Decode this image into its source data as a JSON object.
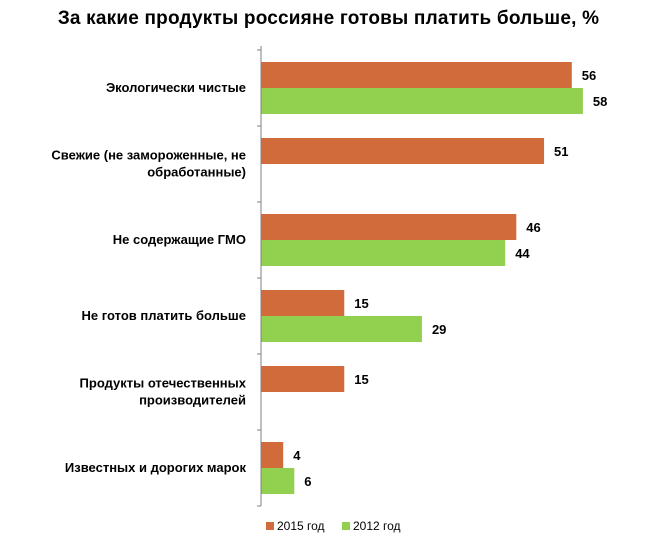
{
  "chart_data": {
    "type": "bar",
    "orientation": "horizontal",
    "title": "За какие продукты россияне готовы платить больше, %",
    "categories": [
      [
        "Экологически чистые"
      ],
      [
        "Свежие (не замороженные, не",
        "обработанные)"
      ],
      [
        "Не содержащие ГМО"
      ],
      [
        "Не готов платить больше"
      ],
      [
        "Продукты отечественных",
        "производителей"
      ],
      [
        "Известных и дорогих марок"
      ]
    ],
    "series": [
      {
        "name": "2015 год",
        "color": "#D26B3C",
        "values": [
          56,
          51,
          46,
          15,
          15,
          4
        ]
      },
      {
        "name": "2012 год",
        "color": "#92D050",
        "values": [
          58,
          null,
          44,
          29,
          null,
          6
        ]
      }
    ],
    "xlim": [
      0,
      60
    ],
    "grid": false,
    "legend_position": "bottom"
  }
}
